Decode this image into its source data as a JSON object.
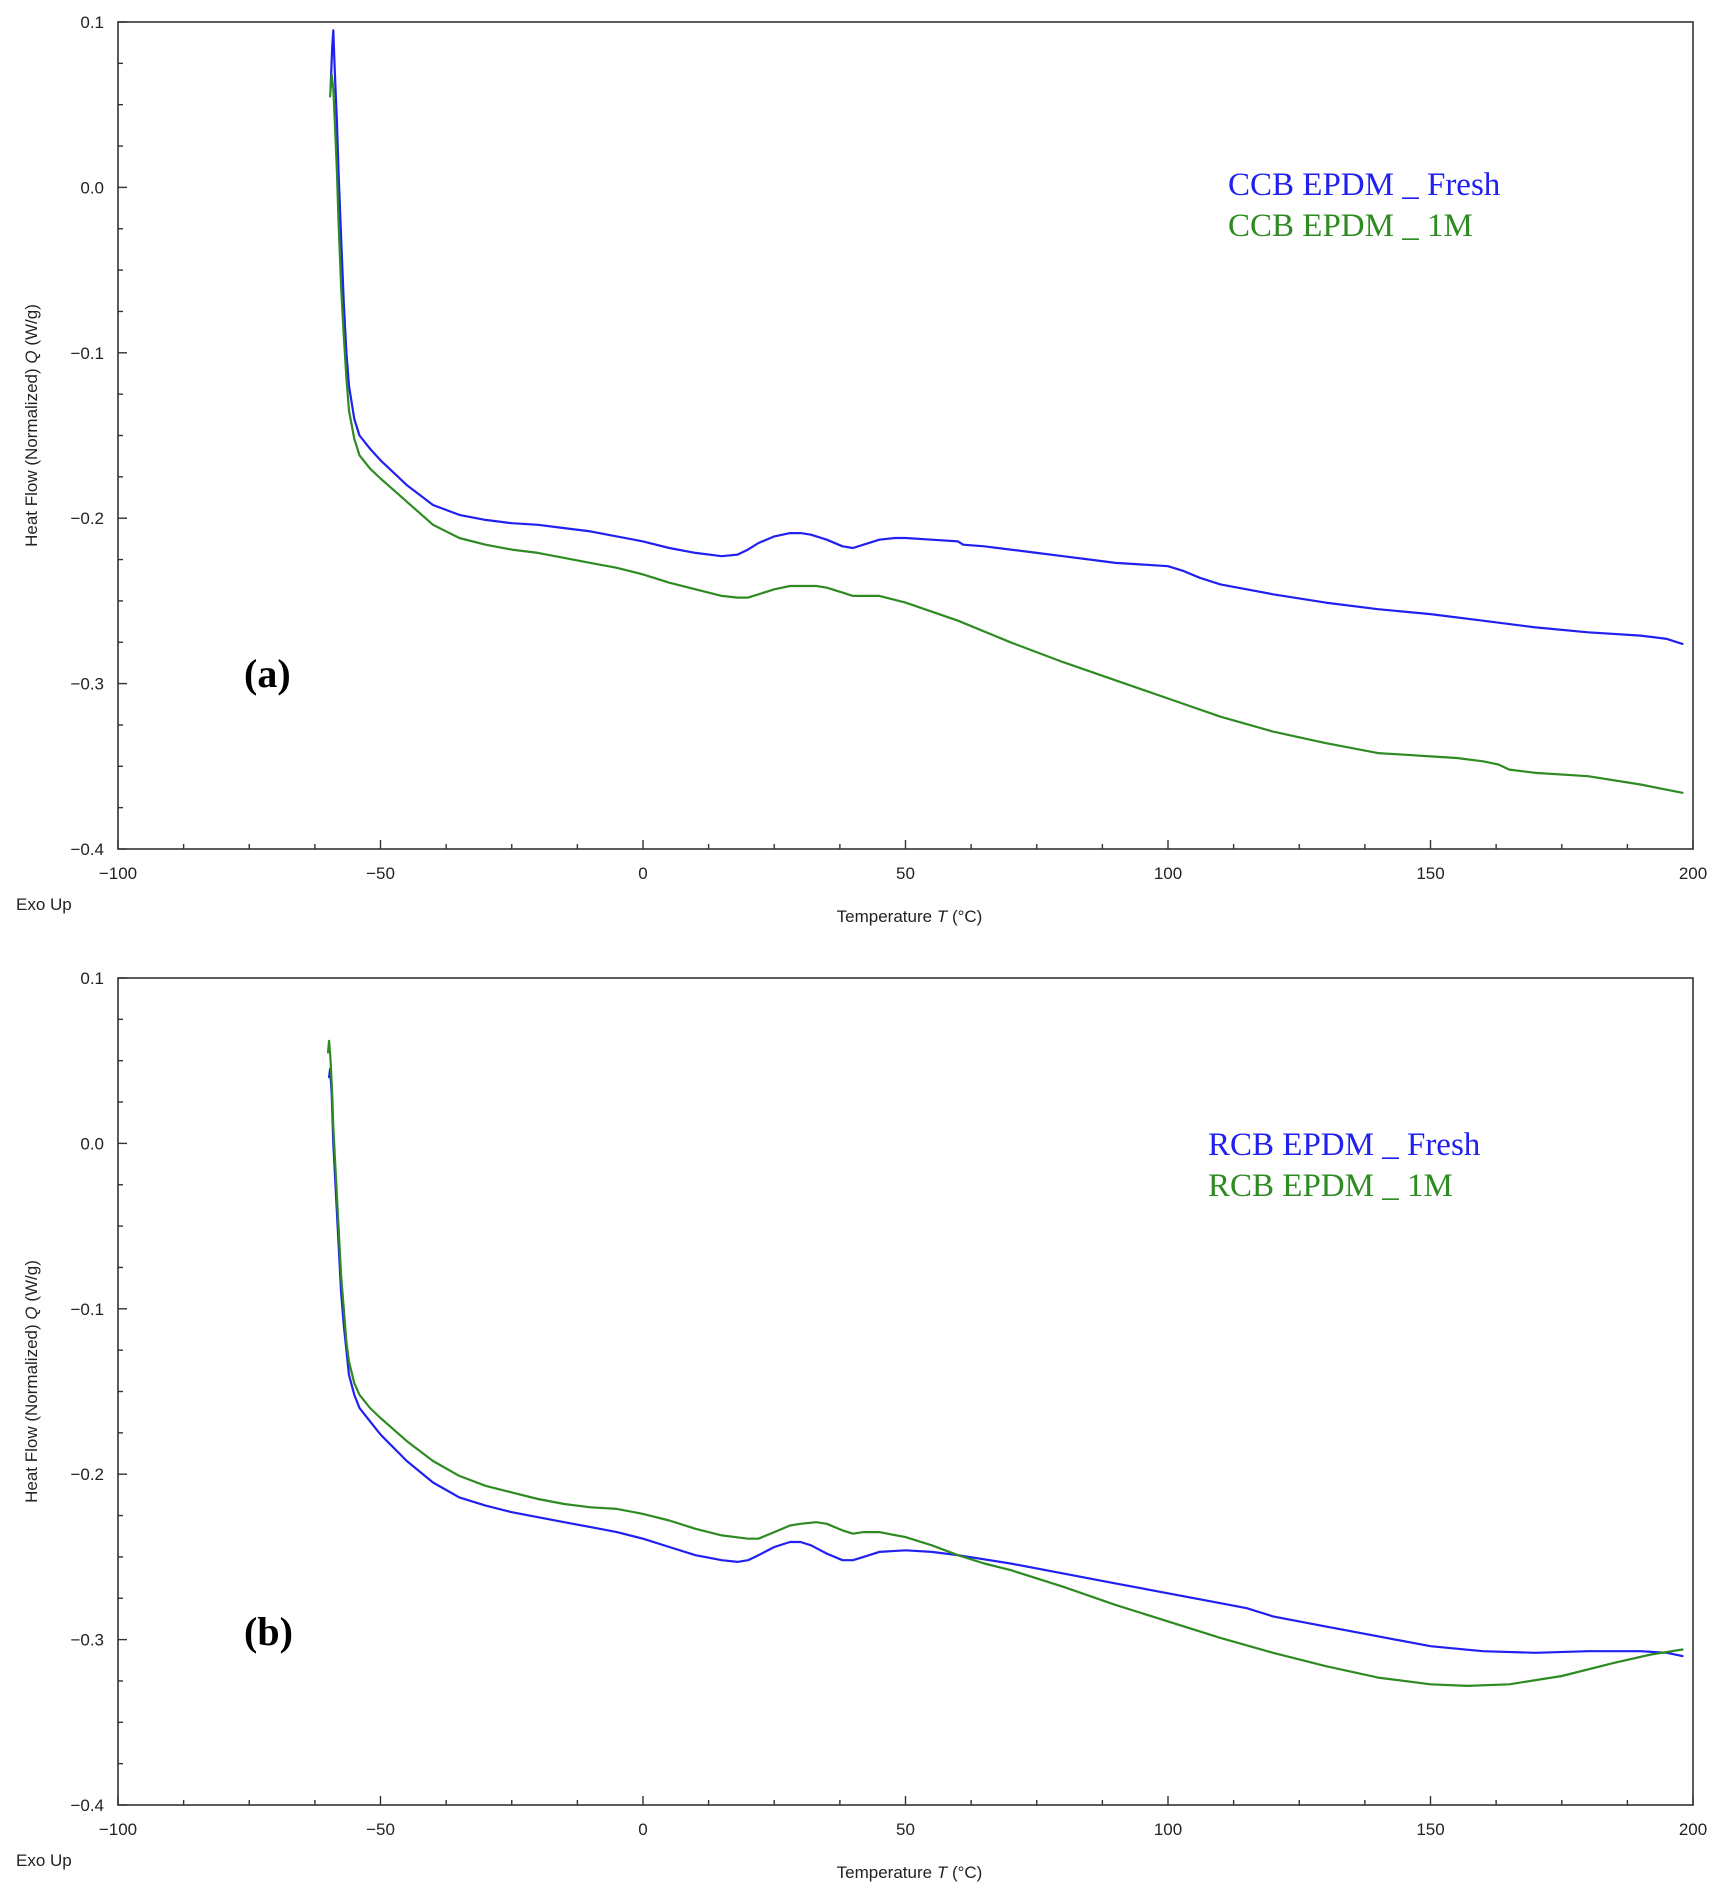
{
  "chart_data": [
    {
      "type": "line",
      "panel_label": "(a)",
      "xlabel_prefix": "Temperature",
      "xlabel_symbol": "T",
      "xlabel_unit": "(°C)",
      "ylabel_prefix": "Heat Flow (Normalized)",
      "ylabel_symbol": "Q",
      "ylabel_unit": "(W/g)",
      "corner_note": "Exo Up",
      "xlim": [
        -100,
        200
      ],
      "ylim": [
        -0.4,
        0.1
      ],
      "xticks": [
        -100,
        -50,
        0,
        50,
        100,
        150,
        200
      ],
      "xtick_labels": [
        "−100",
        "−50",
        "0",
        "50",
        "100",
        "150",
        "200"
      ],
      "yticks": [
        0.1,
        0.0,
        -0.1,
        -0.2,
        -0.3,
        -0.4
      ],
      "ytick_labels": [
        "0.1",
        "0.0",
        "−0.1",
        "−0.2",
        "−0.3",
        "−0.4"
      ],
      "legend_position": "top-right",
      "series": [
        {
          "name": "CCB EPDM _ Fresh",
          "color": "#2020f0",
          "x": [
            -59.5,
            -59.2,
            -59.0,
            -58.7,
            -58.3,
            -58.0,
            -57.5,
            -57.0,
            -56.5,
            -56.0,
            -55.0,
            -54.0,
            -52.0,
            -50.0,
            -45.0,
            -40.0,
            -35.0,
            -30.0,
            -25.0,
            -20.0,
            -15.0,
            -10.0,
            -5.0,
            0.0,
            5.0,
            10.0,
            15.0,
            18.0,
            20.0,
            22.0,
            25.0,
            28.0,
            30.0,
            32.0,
            35.0,
            38.0,
            40.0,
            42.0,
            45.0,
            48.0,
            50.0,
            55.0,
            60.0,
            61.0,
            65.0,
            70.0,
            75.0,
            80.0,
            85.0,
            90.0,
            95.0,
            100.0,
            103.0,
            106.0,
            110.0,
            120.0,
            130.0,
            140.0,
            150.0,
            160.0,
            170.0,
            180.0,
            190.0,
            195.0,
            198.0
          ],
          "y": [
            0.06,
            0.085,
            0.095,
            0.07,
            0.04,
            0.01,
            -0.03,
            -0.07,
            -0.1,
            -0.12,
            -0.14,
            -0.15,
            -0.158,
            -0.165,
            -0.18,
            -0.192,
            -0.198,
            -0.201,
            -0.203,
            -0.204,
            -0.206,
            -0.208,
            -0.211,
            -0.214,
            -0.218,
            -0.221,
            -0.223,
            -0.222,
            -0.219,
            -0.215,
            -0.211,
            -0.209,
            -0.209,
            -0.21,
            -0.213,
            -0.217,
            -0.218,
            -0.216,
            -0.213,
            -0.212,
            -0.212,
            -0.213,
            -0.214,
            -0.216,
            -0.217,
            -0.219,
            -0.221,
            -0.223,
            -0.225,
            -0.227,
            -0.228,
            -0.229,
            -0.232,
            -0.236,
            -0.24,
            -0.246,
            -0.251,
            -0.255,
            -0.258,
            -0.262,
            -0.266,
            -0.269,
            -0.271,
            -0.273,
            -0.276
          ]
        },
        {
          "name": "CCB EPDM _ 1M",
          "color": "#2e8b22",
          "x": [
            -59.6,
            -59.3,
            -59.0,
            -58.7,
            -58.3,
            -58.0,
            -57.5,
            -57.0,
            -56.5,
            -56.0,
            -55.0,
            -54.0,
            -52.0,
            -50.0,
            -45.0,
            -40.0,
            -35.0,
            -30.0,
            -25.0,
            -20.0,
            -15.0,
            -10.0,
            -5.0,
            0.0,
            5.0,
            10.0,
            15.0,
            18.0,
            20.0,
            22.0,
            25.0,
            28.0,
            30.0,
            33.0,
            35.0,
            38.0,
            40.0,
            42.0,
            45.0,
            50.0,
            60.0,
            70.0,
            80.0,
            90.0,
            100.0,
            110.0,
            120.0,
            130.0,
            140.0,
            145.0,
            150.0,
            155.0,
            160.0,
            163.0,
            165.0,
            170.0,
            180.0,
            190.0,
            198.0
          ],
          "y": [
            0.055,
            0.068,
            0.06,
            0.04,
            0.01,
            -0.02,
            -0.06,
            -0.09,
            -0.115,
            -0.135,
            -0.152,
            -0.162,
            -0.17,
            -0.176,
            -0.19,
            -0.204,
            -0.212,
            -0.216,
            -0.219,
            -0.221,
            -0.224,
            -0.227,
            -0.23,
            -0.234,
            -0.239,
            -0.243,
            -0.247,
            -0.248,
            -0.248,
            -0.246,
            -0.243,
            -0.241,
            -0.241,
            -0.241,
            -0.242,
            -0.245,
            -0.247,
            -0.247,
            -0.247,
            -0.251,
            -0.262,
            -0.275,
            -0.287,
            -0.298,
            -0.309,
            -0.32,
            -0.329,
            -0.336,
            -0.342,
            -0.343,
            -0.344,
            -0.345,
            -0.347,
            -0.349,
            -0.352,
            -0.354,
            -0.356,
            -0.361,
            -0.366
          ]
        }
      ]
    },
    {
      "type": "line",
      "panel_label": "(b)",
      "xlabel_prefix": "Temperature",
      "xlabel_symbol": "T",
      "xlabel_unit": "(°C)",
      "ylabel_prefix": "Heat Flow (Normalized)",
      "ylabel_symbol": "Q",
      "ylabel_unit": "(W/g)",
      "corner_note": "Exo Up",
      "xlim": [
        -100,
        200
      ],
      "ylim": [
        -0.4,
        0.1
      ],
      "xticks": [
        -100,
        -50,
        0,
        50,
        100,
        150,
        200
      ],
      "xtick_labels": [
        "−100",
        "−50",
        "0",
        "50",
        "100",
        "150",
        "200"
      ],
      "yticks": [
        0.1,
        0.0,
        -0.1,
        -0.2,
        -0.3,
        -0.4
      ],
      "ytick_labels": [
        "0.1",
        "0.0",
        "−0.1",
        "−0.2",
        "−0.3",
        "−0.4"
      ],
      "legend_position": "top-right",
      "series": [
        {
          "name": "RCB EPDM _ Fresh",
          "color": "#2020f0",
          "x": [
            -59.8,
            -59.6,
            -59.3,
            -59.0,
            -58.5,
            -58.0,
            -57.5,
            -57.0,
            -56.5,
            -56.0,
            -55.0,
            -54.0,
            -52.0,
            -50.0,
            -45.0,
            -40.0,
            -35.0,
            -30.0,
            -25.0,
            -20.0,
            -15.0,
            -10.0,
            -5.0,
            0.0,
            5.0,
            10.0,
            15.0,
            18.0,
            20.0,
            22.0,
            25.0,
            28.0,
            30.0,
            32.0,
            35.0,
            38.0,
            40.0,
            42.0,
            45.0,
            50.0,
            55.0,
            60.0,
            70.0,
            80.0,
            90.0,
            100.0,
            110.0,
            115.0,
            120.0,
            130.0,
            140.0,
            150.0,
            160.0,
            170.0,
            180.0,
            190.0,
            195.0,
            198.0
          ],
          "y": [
            0.04,
            0.045,
            0.03,
            0.0,
            -0.03,
            -0.06,
            -0.09,
            -0.11,
            -0.125,
            -0.14,
            -0.152,
            -0.16,
            -0.168,
            -0.176,
            -0.192,
            -0.205,
            -0.214,
            -0.219,
            -0.223,
            -0.226,
            -0.229,
            -0.232,
            -0.235,
            -0.239,
            -0.244,
            -0.249,
            -0.252,
            -0.253,
            -0.252,
            -0.249,
            -0.244,
            -0.241,
            -0.241,
            -0.243,
            -0.248,
            -0.252,
            -0.252,
            -0.25,
            -0.247,
            -0.246,
            -0.247,
            -0.249,
            -0.254,
            -0.26,
            -0.266,
            -0.272,
            -0.278,
            -0.281,
            -0.286,
            -0.292,
            -0.298,
            -0.304,
            -0.307,
            -0.308,
            -0.307,
            -0.307,
            -0.308,
            -0.31
          ]
        },
        {
          "name": "RCB EPDM _ 1M",
          "color": "#2e8b22",
          "x": [
            -60.0,
            -59.8,
            -59.5,
            -59.2,
            -59.0,
            -58.5,
            -58.0,
            -57.5,
            -57.0,
            -56.5,
            -56.0,
            -55.0,
            -54.0,
            -52.0,
            -50.0,
            -45.0,
            -40.0,
            -35.0,
            -30.0,
            -25.0,
            -20.0,
            -15.0,
            -10.0,
            -5.0,
            0.0,
            5.0,
            10.0,
            15.0,
            20.0,
            22.0,
            25.0,
            28.0,
            30.0,
            33.0,
            35.0,
            38.0,
            40.0,
            42.0,
            45.0,
            50.0,
            55.0,
            60.0,
            65.0,
            70.0,
            80.0,
            90.0,
            100.0,
            110.0,
            120.0,
            130.0,
            140.0,
            150.0,
            157.0,
            165.0,
            175.0,
            185.0,
            192.0,
            198.0
          ],
          "y": [
            0.055,
            0.062,
            0.05,
            0.03,
            0.01,
            -0.02,
            -0.05,
            -0.08,
            -0.1,
            -0.12,
            -0.132,
            -0.145,
            -0.152,
            -0.16,
            -0.166,
            -0.18,
            -0.192,
            -0.201,
            -0.207,
            -0.211,
            -0.215,
            -0.218,
            -0.22,
            -0.221,
            -0.224,
            -0.228,
            -0.233,
            -0.237,
            -0.239,
            -0.239,
            -0.235,
            -0.231,
            -0.23,
            -0.229,
            -0.23,
            -0.234,
            -0.236,
            -0.235,
            -0.235,
            -0.238,
            -0.243,
            -0.249,
            -0.254,
            -0.258,
            -0.268,
            -0.279,
            -0.289,
            -0.299,
            -0.308,
            -0.316,
            -0.323,
            -0.327,
            -0.328,
            -0.327,
            -0.322,
            -0.314,
            -0.309,
            -0.306
          ]
        }
      ]
    }
  ]
}
